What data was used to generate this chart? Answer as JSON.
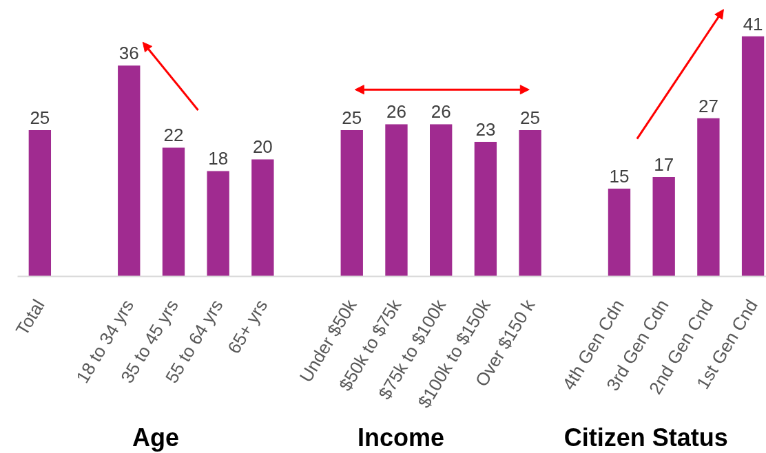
{
  "chart_data": {
    "type": "bar",
    "categories": [
      "Total",
      null,
      "18 to 34 yrs",
      "35 to 45 yrs",
      "55 to 64 yrs",
      "65+ yrs",
      null,
      "Under $50k",
      "$50k to $75k",
      "$75k to $100k",
      "$100k to $150k",
      "Over $150 k",
      null,
      "4th Gen Cdn",
      "3rd Gen Cdn",
      "2nd Gen Cnd",
      "1st Gen Cnd"
    ],
    "values": [
      25,
      null,
      36,
      22,
      18,
      20,
      null,
      25,
      26,
      26,
      23,
      25,
      null,
      15,
      17,
      27,
      41
    ],
    "color": "#a02b90",
    "data_labels": true,
    "annotations": [
      "Age",
      "Income",
      "Citizen Status"
    ]
  }
}
